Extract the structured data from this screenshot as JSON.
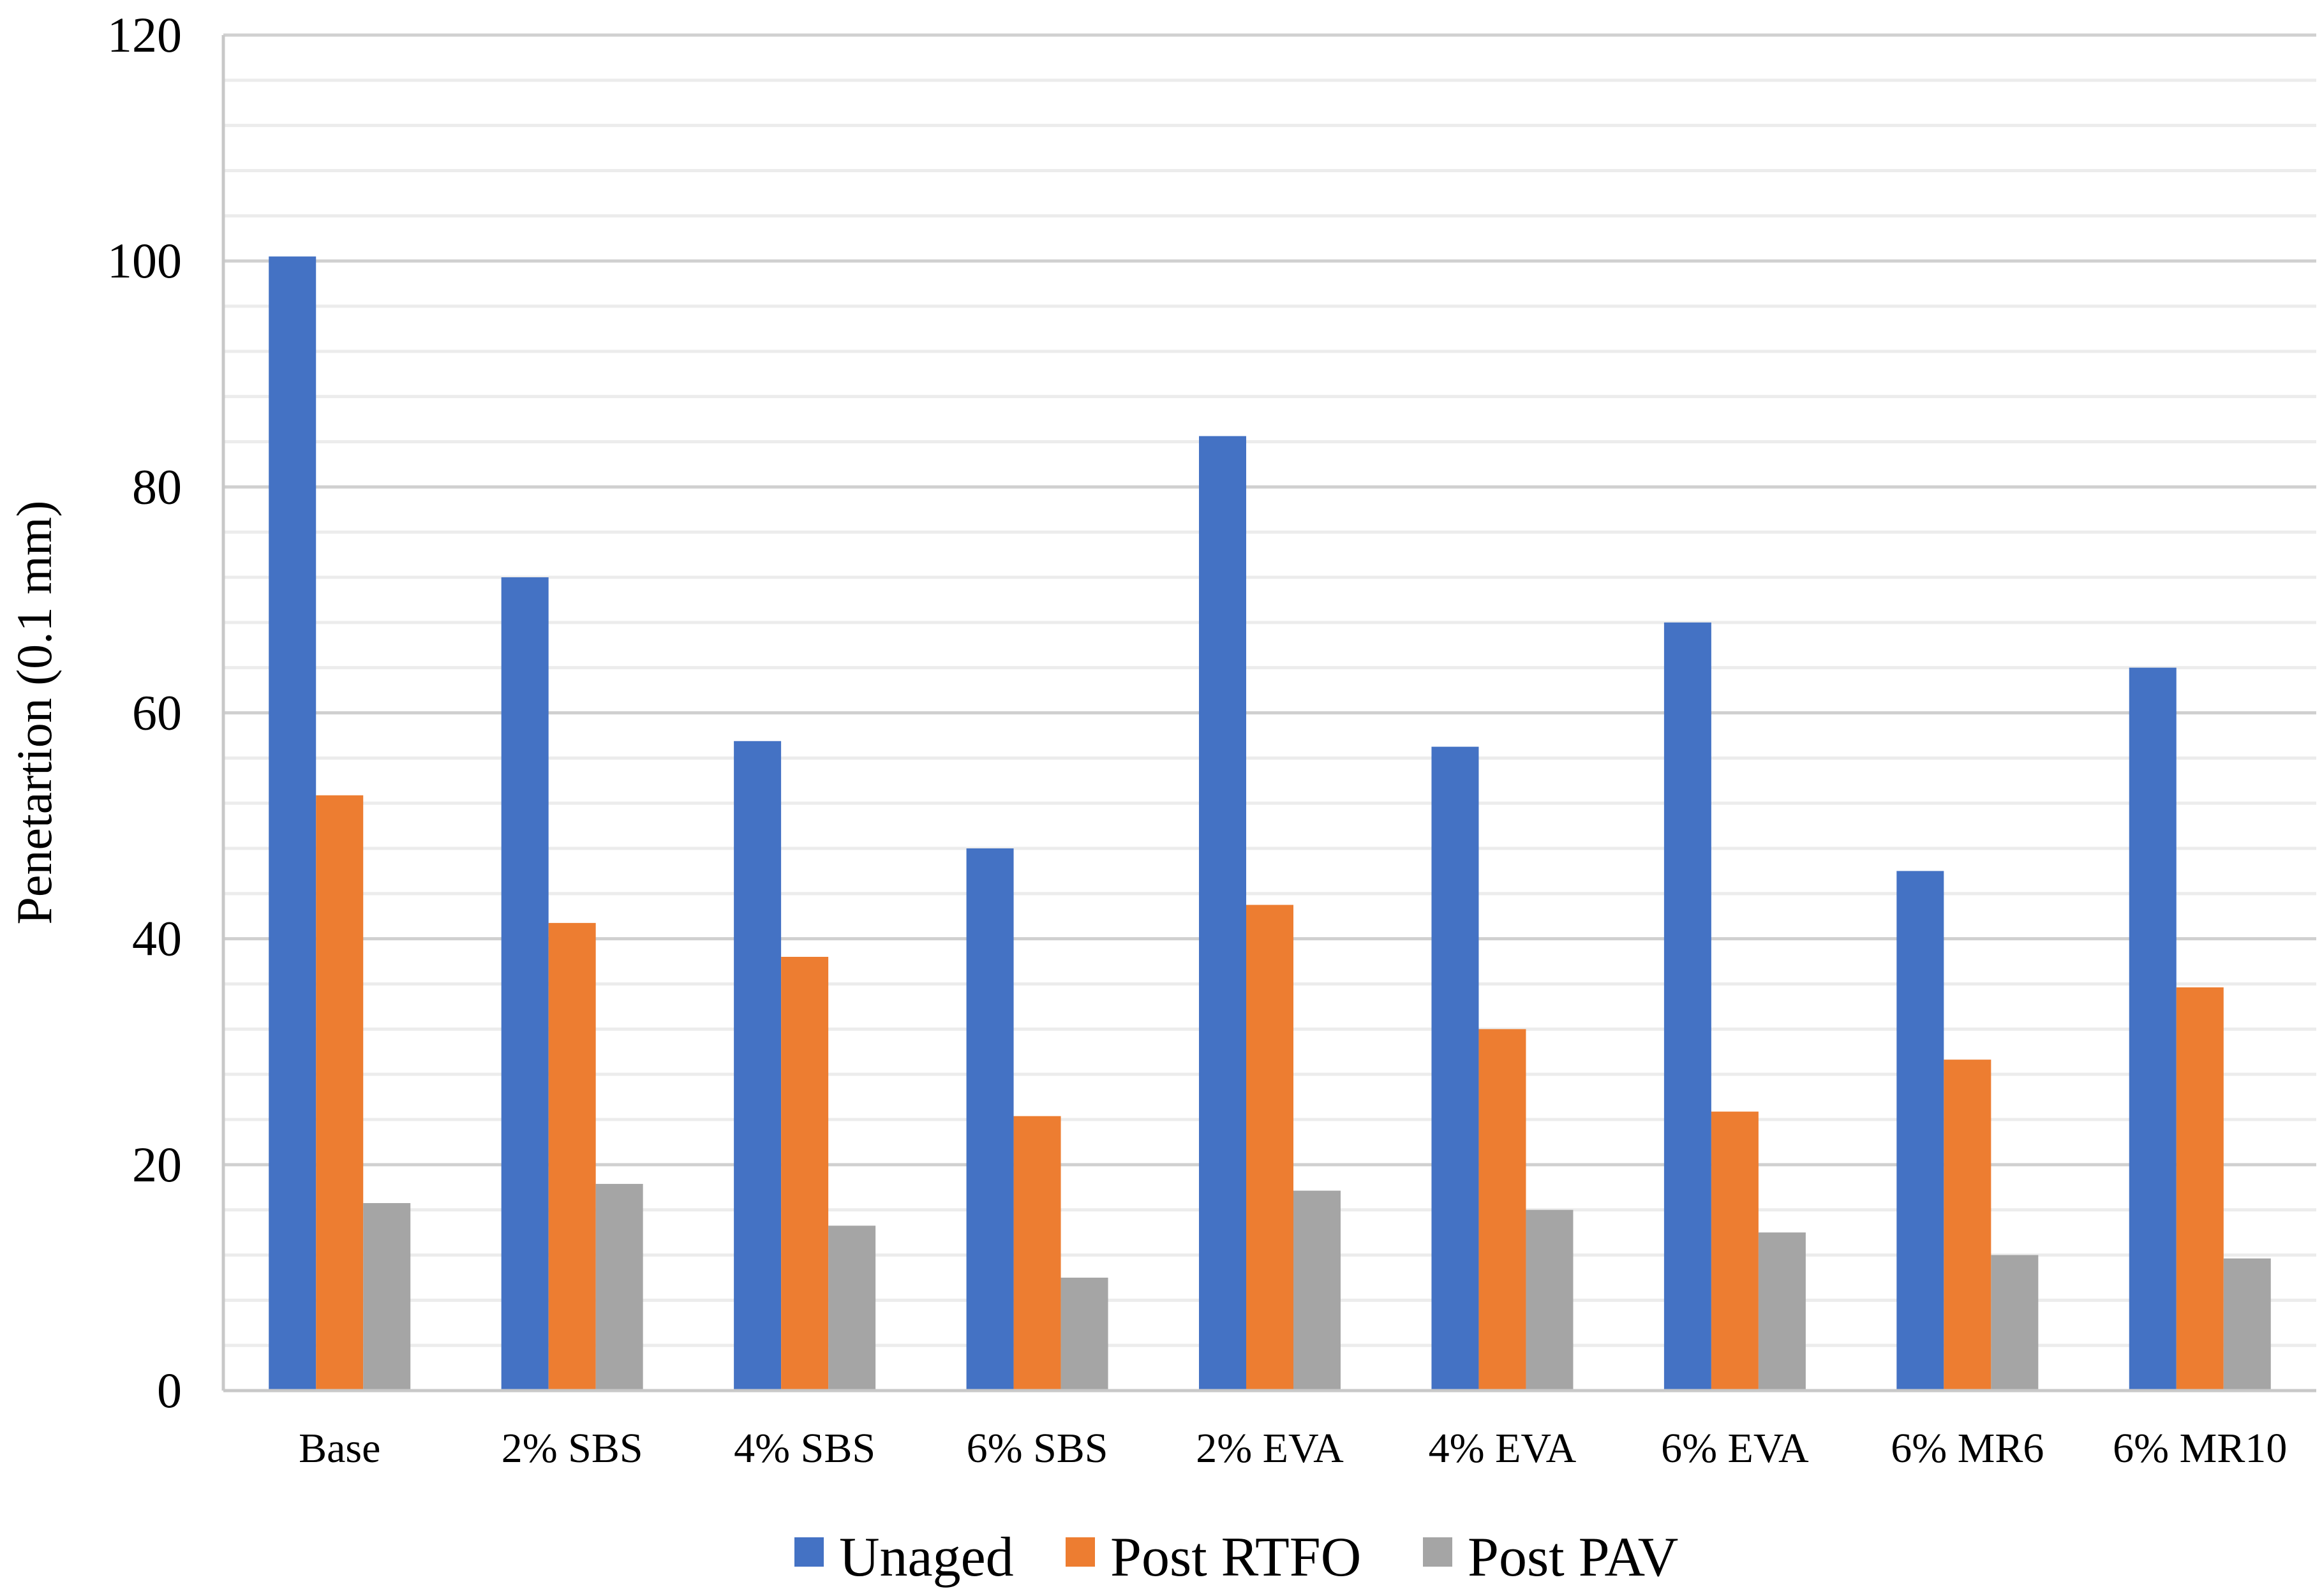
{
  "chart_data": {
    "type": "bar",
    "title": "",
    "xlabel": "",
    "ylabel": "Penetartion (0.1 mm)",
    "ylim": [
      0,
      120
    ],
    "yticks": [
      0,
      20,
      40,
      60,
      80,
      100,
      120
    ],
    "minor_step": 4,
    "grid": true,
    "legend_position": "bottom",
    "categories": [
      "Base",
      "2% SBS",
      "4% SBS",
      "6% SBS",
      "2% EVA",
      "4% EVA",
      "6% EVA",
      "6% MR6",
      "6% MR10"
    ],
    "series": [
      {
        "name": "Unaged",
        "color": "#4472C4",
        "values": [
          100.4,
          72.0,
          57.5,
          48.0,
          84.5,
          57.0,
          68.0,
          46.0,
          64.0
        ]
      },
      {
        "name": "Post RTFO",
        "color": "#ED7D31",
        "values": [
          52.7,
          41.4,
          38.4,
          24.3,
          43.0,
          32.0,
          24.7,
          29.3,
          35.7
        ]
      },
      {
        "name": "Post PAV",
        "color": "#A5A5A5",
        "values": [
          16.6,
          18.3,
          14.6,
          10.0,
          17.7,
          16.0,
          14.0,
          12.0,
          11.7
        ]
      }
    ]
  }
}
